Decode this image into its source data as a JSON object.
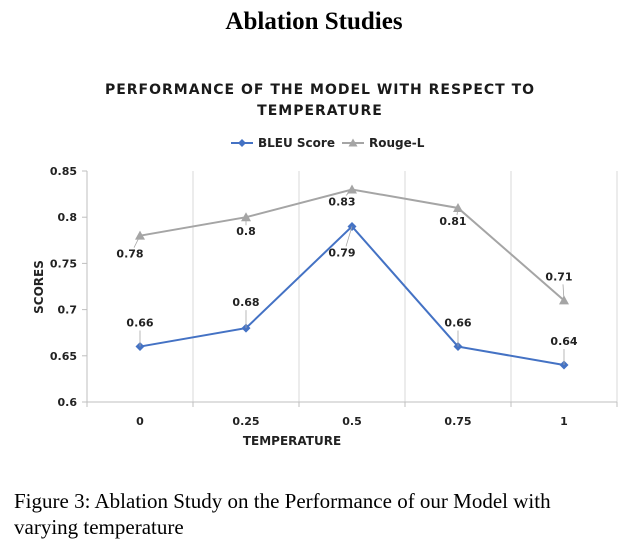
{
  "page_heading": "Ablation Studies",
  "caption": "Figure 3: Ablation Study on the Performance of our Model with varying temperature",
  "colors": {
    "bleu": "#4472C4",
    "rouge": "#A5A5A5",
    "grid": "#D9D9D9",
    "axis": "#BFBFBF"
  },
  "chart_data": {
    "type": "line",
    "title": "PERFORMANCE OF THE MODEL WITH RESPECT TO TEMPERATURE",
    "xlabel": "TEMPERATURE",
    "ylabel": "SCORES",
    "categories": [
      "0",
      "0.25",
      "0.5",
      "0.75",
      "1"
    ],
    "ylim": [
      0.6,
      0.85
    ],
    "yticks": [
      0.6,
      0.65,
      0.7,
      0.75,
      0.8,
      0.85
    ],
    "ytick_labels": [
      "0.6",
      "0.65",
      "0.7",
      "0.75",
      "0.8",
      "0.85"
    ],
    "grid": "vertical",
    "legend_position": "top",
    "series": [
      {
        "name": "BLEU Score",
        "marker": "diamond",
        "values": [
          0.66,
          0.68,
          0.79,
          0.66,
          0.64
        ],
        "labels": [
          "0.66",
          "0.68",
          "0.79",
          "0.66",
          "0.64"
        ]
      },
      {
        "name": "Rouge-L",
        "marker": "triangle",
        "values": [
          0.78,
          0.8,
          0.83,
          0.81,
          0.71
        ],
        "labels": [
          "0.78",
          "0.8",
          "0.83",
          "0.81",
          "0.71"
        ]
      }
    ]
  }
}
